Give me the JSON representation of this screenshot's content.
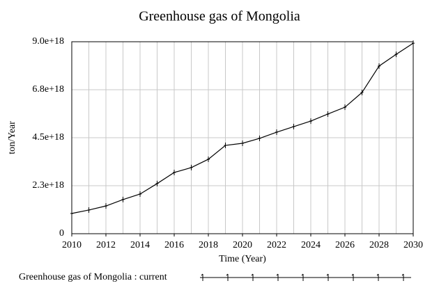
{
  "chart_data": {
    "type": "line",
    "title": "Greenhouse gas of Mongolia",
    "x_label": "Time (Year)",
    "y_label": "ton/Year",
    "x": [
      2010,
      2011,
      2012,
      2013,
      2014,
      2015,
      2016,
      2017,
      2018,
      2019,
      2020,
      2021,
      2022,
      2023,
      2024,
      2025,
      2026,
      2027,
      2028,
      2029,
      2030
    ],
    "series": [
      {
        "name": "Greenhouse gas of Mongolia : current",
        "color": "#000000",
        "values": [
          9.5e+17,
          1.11e+18,
          1.3e+18,
          1.6e+18,
          1.86e+18,
          2.35e+18,
          2.87e+18,
          3.1e+18,
          3.49e+18,
          4.14e+18,
          4.24e+18,
          4.47e+18,
          4.76e+18,
          5.02e+18,
          5.28e+18,
          5.61e+18,
          5.93e+18,
          6.62e+18,
          7.86e+18,
          8.41e+18,
          8.93e+18
        ]
      }
    ],
    "xlim": [
      2010,
      2030
    ],
    "xticks": [
      2010,
      2012,
      2014,
      2016,
      2018,
      2020,
      2022,
      2024,
      2026,
      2028,
      2030
    ],
    "ylim": [
      0,
      9e+18
    ],
    "yticks": [
      0,
      {
        "value": 2.25e+18,
        "label": "2.3e+18"
      },
      {
        "value": 4.5e+18,
        "label": "4.5e+18"
      },
      {
        "value": 6.75e+18,
        "label": "6.8e+18"
      },
      {
        "value": 9e+18,
        "label": "9.0e+18"
      }
    ],
    "grid": true
  }
}
